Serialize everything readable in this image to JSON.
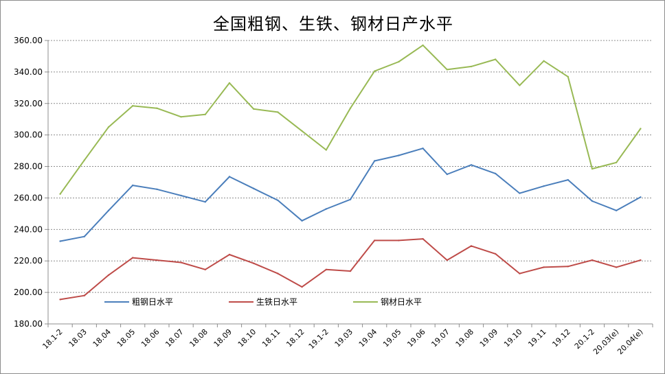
{
  "chart_data": {
    "type": "line",
    "title": "全国粗钢、生铁、钢材日产水平",
    "categories": [
      "18.1-2",
      "18.03",
      "18.04",
      "18.05",
      "18.06",
      "18.07",
      "18.08",
      "18.09",
      "18.10",
      "18.11",
      "18.12",
      "19.1-2",
      "19.03",
      "19.04",
      "19.05",
      "19.06",
      "19.07",
      "19.08",
      "19.09",
      "19.10",
      "19.11",
      "19.12",
      "20.1-2",
      "20.03(e)",
      "20.04(e)"
    ],
    "ylim": [
      180,
      360
    ],
    "yticks": [
      "180.00",
      "200.00",
      "220.00",
      "240.00",
      "260.00",
      "280.00",
      "300.00",
      "320.00",
      "340.00",
      "360.00"
    ],
    "grid": true,
    "legend_position": "inside-bottom-left",
    "series": [
      {
        "name": "粗钢日水平",
        "color": "#4a7ebb",
        "values": [
          232.5,
          235.5,
          252,
          268,
          265.5,
          261.5,
          257.5,
          273.5,
          266,
          258.5,
          245.5,
          253,
          259,
          283.5,
          287,
          291.5,
          275,
          281,
          275.5,
          263,
          267.5,
          271.5,
          258,
          252,
          260.5
        ]
      },
      {
        "name": "生铁日水平",
        "color": "#be4b48",
        "values": [
          195.5,
          198,
          211,
          222,
          220.5,
          219,
          214.5,
          224,
          218.5,
          212,
          203.5,
          214.5,
          213.5,
          233,
          233,
          234,
          220.5,
          229.5,
          224.5,
          212,
          216,
          216.5,
          220.5,
          216,
          220.5
        ]
      },
      {
        "name": "钢材日水平",
        "color": "#98b954",
        "values": [
          262.5,
          284,
          305,
          318.5,
          317,
          311.5,
          313,
          333,
          316.5,
          314.5,
          302.5,
          290.5,
          317,
          340.5,
          346.5,
          357,
          341.5,
          343.5,
          348,
          331.5,
          347,
          337,
          278.5,
          282.5,
          304
        ]
      }
    ]
  }
}
